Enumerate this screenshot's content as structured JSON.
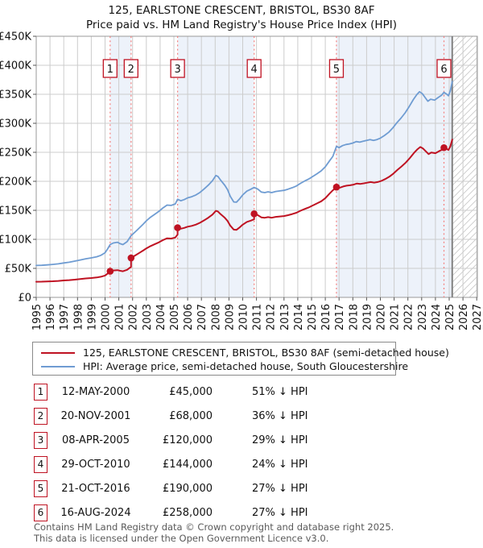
{
  "chart_data": {
    "type": "line",
    "title": "125, EARLSTONE CRESCENT, BRISTOL, BS30 8AF",
    "subtitle": "Price paid vs. HM Land Registry's House Price Index (HPI)",
    "xlabel": "",
    "ylabel": "",
    "ylim": [
      0,
      450000
    ],
    "x_range": [
      1995,
      2027.05
    ],
    "grid": true,
    "legend_position": "below",
    "values_unit": "GBP_thousands",
    "now_x": 2025.22,
    "x_ticks": [
      1995,
      1996,
      1997,
      1998,
      1999,
      2000,
      2001,
      2002,
      2003,
      2004,
      2005,
      2006,
      2007,
      2008,
      2009,
      2010,
      2011,
      2012,
      2013,
      2014,
      2015,
      2016,
      2017,
      2018,
      2019,
      2020,
      2021,
      2022,
      2023,
      2024,
      2025,
      2026,
      2027
    ],
    "y_ticks": [
      {
        "v": 0,
        "label": "£0"
      },
      {
        "v": 50,
        "label": "£50K"
      },
      {
        "v": 100,
        "label": "£100K"
      },
      {
        "v": 150,
        "label": "£150K"
      },
      {
        "v": 200,
        "label": "£200K"
      },
      {
        "v": 250,
        "label": "£250K"
      },
      {
        "v": 300,
        "label": "£300K"
      },
      {
        "v": 350,
        "label": "£350K"
      },
      {
        "v": 400,
        "label": "£400K"
      },
      {
        "v": 450,
        "label": "£450K"
      }
    ],
    "colors": {
      "property": "#bf1222",
      "hpi": "#6f9cd2",
      "band": "#edf2fa",
      "grid": "#cccccc",
      "frame": "#999999",
      "dashed": "#f4807e",
      "now_line": "#808080",
      "hatch": "#c8c8c8",
      "badge_border": "#bf1222",
      "axis_text": "#111111"
    },
    "bands": [
      [
        2000.37,
        2001.89
      ],
      [
        2005.27,
        2010.83
      ],
      [
        2016.81,
        2025.22
      ]
    ],
    "series": [
      {
        "name": "125, EARLSTONE CRESCENT, BRISTOL, BS30 8AF (semi-detached house)",
        "color": "#bf1222",
        "points": [
          [
            1995,
            27
          ],
          [
            1995.4,
            27.1
          ],
          [
            1995.8,
            27.5
          ],
          [
            1996.2,
            27.8
          ],
          [
            1996.6,
            28.3
          ],
          [
            1997,
            29.1
          ],
          [
            1997.4,
            29.7
          ],
          [
            1997.8,
            30.6
          ],
          [
            1998.2,
            31.6
          ],
          [
            1998.6,
            32.6
          ],
          [
            1999,
            33.3
          ],
          [
            1999.4,
            34.3
          ],
          [
            1999.7,
            35.5
          ],
          [
            2000,
            37.7
          ],
          [
            2000.2,
            41.2
          ],
          [
            2000.37,
            45
          ],
          [
            2000.6,
            46.4
          ],
          [
            2000.9,
            47
          ],
          [
            2001.1,
            45.8
          ],
          [
            2001.3,
            45
          ],
          [
            2001.6,
            47.5
          ],
          [
            2001.89,
            52.6
          ],
          [
            2001.89,
            68
          ],
          [
            2002.2,
            72.3
          ],
          [
            2002.5,
            76.8
          ],
          [
            2002.8,
            81.3
          ],
          [
            2003,
            84.5
          ],
          [
            2003.3,
            88.3
          ],
          [
            2003.6,
            91.5
          ],
          [
            2003.9,
            94.7
          ],
          [
            2004.2,
            98.6
          ],
          [
            2004.5,
            101.8
          ],
          [
            2004.8,
            101.4
          ],
          [
            2005.1,
            103
          ],
          [
            2005.27,
            108.2
          ],
          [
            2005.27,
            120
          ],
          [
            2005.5,
            118.3
          ],
          [
            2005.75,
            119.7
          ],
          [
            2006,
            121.8
          ],
          [
            2006.3,
            123.2
          ],
          [
            2006.6,
            125.4
          ],
          [
            2006.9,
            128.6
          ],
          [
            2007.2,
            132.8
          ],
          [
            2007.5,
            137.4
          ],
          [
            2007.8,
            142.7
          ],
          [
            2008.05,
            149.1
          ],
          [
            2008.2,
            148.1
          ],
          [
            2008.4,
            143.4
          ],
          [
            2008.7,
            137.1
          ],
          [
            2008.9,
            131.7
          ],
          [
            2009.1,
            123.5
          ],
          [
            2009.35,
            116.8
          ],
          [
            2009.55,
            116.4
          ],
          [
            2009.75,
            120
          ],
          [
            2010,
            125.3
          ],
          [
            2010.3,
            130
          ],
          [
            2010.6,
            132.4
          ],
          [
            2010.83,
            134.6
          ],
          [
            2010.83,
            144
          ],
          [
            2011.1,
            141.7
          ],
          [
            2011.35,
            137.9
          ],
          [
            2011.6,
            137.2
          ],
          [
            2011.85,
            138.3
          ],
          [
            2012.1,
            137.2
          ],
          [
            2012.4,
            138.7
          ],
          [
            2012.7,
            139.5
          ],
          [
            2013,
            140.2
          ],
          [
            2013.3,
            141.7
          ],
          [
            2013.6,
            143.6
          ],
          [
            2013.9,
            145.9
          ],
          [
            2014.2,
            149.3
          ],
          [
            2014.5,
            152.4
          ],
          [
            2014.8,
            155
          ],
          [
            2015.1,
            158.5
          ],
          [
            2015.4,
            161.9
          ],
          [
            2015.7,
            165.6
          ],
          [
            2016,
            171
          ],
          [
            2016.3,
            178.6
          ],
          [
            2016.55,
            184.6
          ],
          [
            2016.81,
            190
          ],
          [
            2017.05,
            189
          ],
          [
            2017.3,
            191.1
          ],
          [
            2017.55,
            192.5
          ],
          [
            2017.8,
            193.2
          ],
          [
            2018.05,
            194.3
          ],
          [
            2018.3,
            196.2
          ],
          [
            2018.55,
            195.5
          ],
          [
            2018.8,
            196.5
          ],
          [
            2019.05,
            197.6
          ],
          [
            2019.3,
            198.7
          ],
          [
            2019.55,
            197.6
          ],
          [
            2019.8,
            198.7
          ],
          [
            2020.05,
            200.6
          ],
          [
            2020.35,
            203.9
          ],
          [
            2020.65,
            207.9
          ],
          [
            2020.95,
            213.4
          ],
          [
            2021.25,
            220
          ],
          [
            2021.55,
            225.8
          ],
          [
            2021.85,
            232.4
          ],
          [
            2022.15,
            240.4
          ],
          [
            2022.45,
            249.2
          ],
          [
            2022.7,
            255.4
          ],
          [
            2022.9,
            259.1
          ],
          [
            2023.1,
            256.5
          ],
          [
            2023.3,
            251.8
          ],
          [
            2023.5,
            247
          ],
          [
            2023.7,
            249.6
          ],
          [
            2024,
            248.5
          ],
          [
            2024.25,
            251.8
          ],
          [
            2024.5,
            254.7
          ],
          [
            2024.62,
            258
          ],
          [
            2024.8,
            256.2
          ],
          [
            2024.95,
            254
          ],
          [
            2025.08,
            260.2
          ],
          [
            2025.22,
            271.9
          ]
        ]
      },
      {
        "name": "HPI: Average price, semi-detached house, South Gloucestershire",
        "color": "#6f9cd2",
        "points": [
          [
            1995,
            55
          ],
          [
            1995.4,
            55.3
          ],
          [
            1995.8,
            56
          ],
          [
            1996.2,
            56.8
          ],
          [
            1996.6,
            57.8
          ],
          [
            1997,
            59.3
          ],
          [
            1997.4,
            60.6
          ],
          [
            1997.8,
            62.5
          ],
          [
            1998.2,
            64.5
          ],
          [
            1998.6,
            66.5
          ],
          [
            1999,
            68
          ],
          [
            1999.4,
            70
          ],
          [
            1999.7,
            72.5
          ],
          [
            2000,
            77
          ],
          [
            2000.2,
            84
          ],
          [
            2000.37,
            91
          ],
          [
            2000.6,
            93.8
          ],
          [
            2000.9,
            95
          ],
          [
            2001.1,
            92.5
          ],
          [
            2001.3,
            91
          ],
          [
            2001.6,
            96
          ],
          [
            2001.89,
            106.3
          ],
          [
            2002.2,
            113
          ],
          [
            2002.5,
            120
          ],
          [
            2002.8,
            127
          ],
          [
            2003,
            132
          ],
          [
            2003.3,
            138
          ],
          [
            2003.6,
            143
          ],
          [
            2003.9,
            148
          ],
          [
            2004.2,
            154
          ],
          [
            2004.5,
            159
          ],
          [
            2004.8,
            158.5
          ],
          [
            2005.1,
            161
          ],
          [
            2005.27,
            169
          ],
          [
            2005.5,
            166.5
          ],
          [
            2005.75,
            168.5
          ],
          [
            2006,
            171.5
          ],
          [
            2006.3,
            173.5
          ],
          [
            2006.6,
            176.5
          ],
          [
            2006.9,
            181
          ],
          [
            2007.2,
            187
          ],
          [
            2007.5,
            193.5
          ],
          [
            2007.8,
            201
          ],
          [
            2008.05,
            210
          ],
          [
            2008.2,
            208.5
          ],
          [
            2008.4,
            202
          ],
          [
            2008.7,
            193
          ],
          [
            2008.9,
            185.5
          ],
          [
            2009.1,
            174
          ],
          [
            2009.35,
            164.5
          ],
          [
            2009.55,
            164
          ],
          [
            2009.75,
            169
          ],
          [
            2010,
            176.5
          ],
          [
            2010.3,
            183
          ],
          [
            2010.6,
            186.5
          ],
          [
            2010.83,
            189.5
          ],
          [
            2011.1,
            186.5
          ],
          [
            2011.35,
            181.5
          ],
          [
            2011.6,
            180.5
          ],
          [
            2011.85,
            182
          ],
          [
            2012.1,
            180.5
          ],
          [
            2012.4,
            182.5
          ],
          [
            2012.7,
            183.5
          ],
          [
            2013,
            184.5
          ],
          [
            2013.3,
            186.5
          ],
          [
            2013.6,
            189
          ],
          [
            2013.9,
            192
          ],
          [
            2014.2,
            196.5
          ],
          [
            2014.5,
            200.5
          ],
          [
            2014.8,
            204
          ],
          [
            2015.1,
            208.5
          ],
          [
            2015.4,
            213
          ],
          [
            2015.7,
            218
          ],
          [
            2016,
            225
          ],
          [
            2016.3,
            235
          ],
          [
            2016.55,
            243
          ],
          [
            2016.81,
            260.3
          ],
          [
            2017,
            258
          ],
          [
            2017.25,
            261.5
          ],
          [
            2017.5,
            263.5
          ],
          [
            2017.75,
            264.5
          ],
          [
            2018,
            266
          ],
          [
            2018.25,
            268.5
          ],
          [
            2018.5,
            267.5
          ],
          [
            2018.75,
            269
          ],
          [
            2019,
            270.5
          ],
          [
            2019.25,
            272
          ],
          [
            2019.5,
            270.5
          ],
          [
            2019.75,
            272
          ],
          [
            2020,
            274.5
          ],
          [
            2020.3,
            279
          ],
          [
            2020.6,
            284.5
          ],
          [
            2020.9,
            292
          ],
          [
            2021.2,
            301
          ],
          [
            2021.5,
            309
          ],
          [
            2021.8,
            318
          ],
          [
            2022.1,
            329
          ],
          [
            2022.4,
            341
          ],
          [
            2022.65,
            349.5
          ],
          [
            2022.85,
            354.5
          ],
          [
            2023.05,
            351
          ],
          [
            2023.25,
            344.5
          ],
          [
            2023.45,
            338
          ],
          [
            2023.65,
            341.5
          ],
          [
            2023.95,
            340
          ],
          [
            2024.2,
            344.5
          ],
          [
            2024.45,
            348.5
          ],
          [
            2024.62,
            353.4
          ],
          [
            2024.8,
            350.5
          ],
          [
            2024.95,
            347.5
          ],
          [
            2025.08,
            356
          ],
          [
            2025.22,
            372
          ]
        ]
      }
    ],
    "sales": [
      {
        "n": "1",
        "date": "12-MAY-2000",
        "price_gbp": 45000,
        "price_label": "£45,000",
        "hpi_delta": "51% ↓ HPI",
        "t": 2000.37,
        "vK": 45
      },
      {
        "n": "2",
        "date": "20-NOV-2001",
        "price_gbp": 68000,
        "price_label": "£68,000",
        "hpi_delta": "36% ↓ HPI",
        "t": 2001.89,
        "vK": 68
      },
      {
        "n": "3",
        "date": "08-APR-2005",
        "price_gbp": 120000,
        "price_label": "£120,000",
        "hpi_delta": "29% ↓ HPI",
        "t": 2005.27,
        "vK": 120
      },
      {
        "n": "4",
        "date": "29-OCT-2010",
        "price_gbp": 144000,
        "price_label": "£144,000",
        "hpi_delta": "24% ↓ HPI",
        "t": 2010.83,
        "vK": 144
      },
      {
        "n": "5",
        "date": "21-OCT-2016",
        "price_gbp": 190000,
        "price_label": "£190,000",
        "hpi_delta": "27% ↓ HPI",
        "t": 2016.81,
        "vK": 190
      },
      {
        "n": "6",
        "date": "16-AUG-2024",
        "price_gbp": 258000,
        "price_label": "£258,000",
        "hpi_delta": "27% ↓ HPI",
        "t": 2024.62,
        "vK": 258
      }
    ]
  },
  "footer": {
    "line1": "Contains HM Land Registry data © Crown copyright and database right 2025.",
    "line2": "This data is licensed under the Open Government Licence v3.0."
  }
}
